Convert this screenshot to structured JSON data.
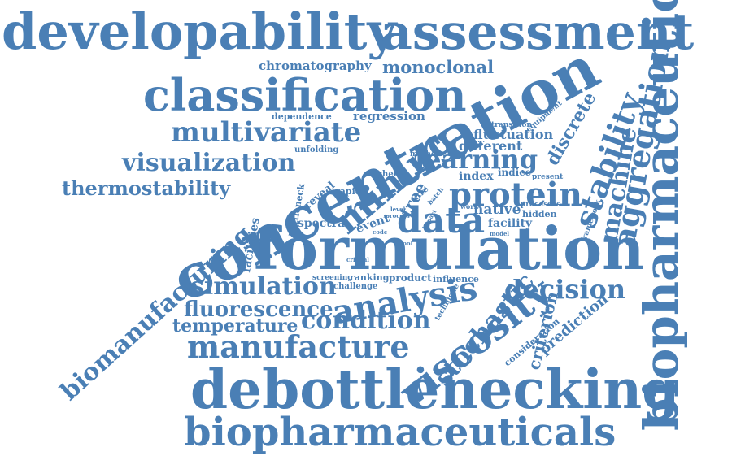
{
  "cloud": {
    "color": "#4a7fb5",
    "words": [
      "developability",
      "assessment",
      "biopharmaceutical",
      "classification",
      "chromatography",
      "monoclonal",
      "concentration",
      "multivariate",
      "dependence",
      "regression",
      "transition",
      "equipment",
      "fluctuation",
      "discrete",
      "stability",
      "aggregation",
      "machine",
      "unfolding",
      "method",
      "different",
      "learning",
      "visualization",
      "mining",
      "higher",
      "index",
      "indice",
      "present",
      "thermostability",
      "protein",
      "rapid",
      "reveal",
      "bottleneck",
      "titre",
      "tree",
      "data",
      "native",
      "processes",
      "hidden",
      "framework",
      "spectra",
      "event",
      "facility",
      "facilities",
      "formulation",
      "biomanufacturing",
      "simulation",
      "screening",
      "ranking",
      "product",
      "challenge",
      "influence",
      "analysis",
      "decision",
      "viscosity",
      "fluorescence",
      "temperature",
      "condition",
      "technique",
      "stochastic",
      "criterion",
      "prediction",
      "consideration",
      "manufacture",
      "debottlenecking",
      "biopharmaceuticals",
      "critical",
      "code",
      "model",
      "level",
      "work",
      "batch",
      "tool",
      "process",
      "impact"
    ]
  }
}
